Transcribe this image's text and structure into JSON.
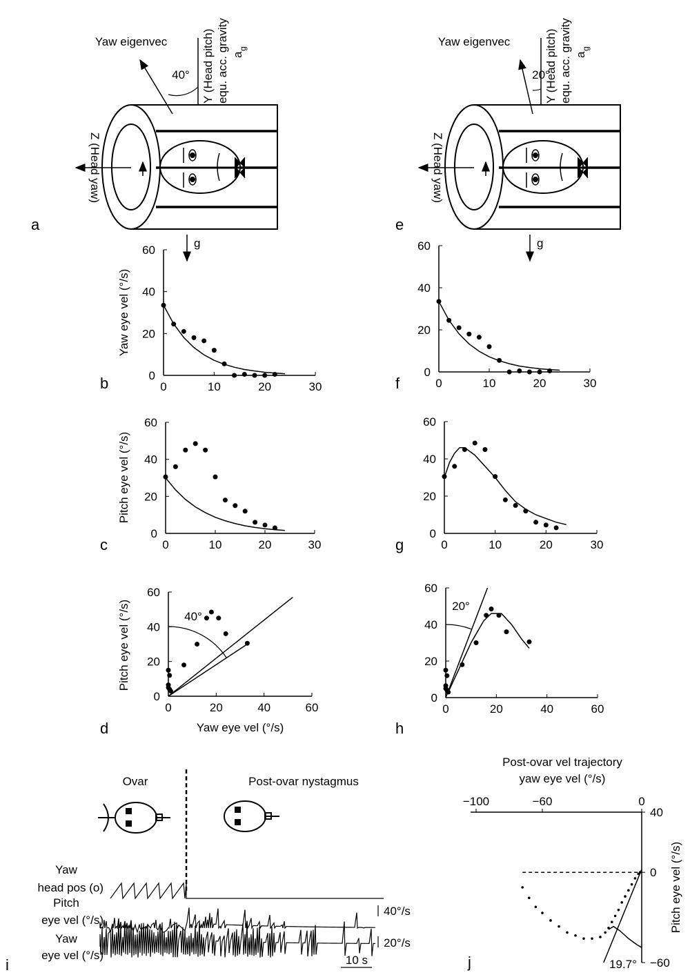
{
  "chart_data": [
    {
      "type": "scatter",
      "panel": "b",
      "ylabel": "Yaw eye vel (°/s)",
      "xlim": [
        0,
        30
      ],
      "ylim": [
        0,
        60
      ],
      "xticks": [
        0,
        10,
        20,
        30
      ],
      "yticks": [
        0,
        20,
        40,
        60
      ],
      "color": "#000000",
      "series": [
        {
          "mode": "markers",
          "x": [
            0,
            2,
            4,
            6,
            8,
            10,
            12,
            14,
            16,
            18,
            20,
            22
          ],
          "values": [
            33.5,
            24.5,
            21,
            18,
            16.5,
            12,
            5.5,
            0,
            0.5,
            0,
            0,
            0.5
          ]
        },
        {
          "mode": "line",
          "x": [
            0,
            2,
            4,
            6,
            8,
            10,
            12,
            14,
            16,
            18,
            20,
            22,
            24
          ],
          "values": [
            33.5,
            24.6,
            18.1,
            13.3,
            9.8,
            7.2,
            5.3,
            3.9,
            2.8,
            2.1,
            1.5,
            1.1,
            0.8
          ]
        }
      ]
    },
    {
      "type": "scatter",
      "panel": "c",
      "ylabel": "Pitch eye vel (°/s)",
      "xlim": [
        0,
        30
      ],
      "ylim": [
        0,
        60
      ],
      "xticks": [
        0,
        10,
        20,
        30
      ],
      "yticks": [
        0,
        20,
        40,
        60
      ],
      "color": "#000000",
      "series": [
        {
          "mode": "markers",
          "x": [
            0,
            2,
            4,
            6,
            8,
            10,
            12,
            14,
            16,
            18,
            20,
            22
          ],
          "values": [
            30.5,
            36,
            45,
            48.5,
            45,
            30.5,
            18,
            15,
            12,
            6,
            4.5,
            3
          ]
        },
        {
          "mode": "line",
          "x": [
            0,
            2,
            4,
            6,
            8,
            10,
            12,
            14,
            16,
            18,
            20,
            22,
            24
          ],
          "values": [
            30,
            23.5,
            18.3,
            14.3,
            11.2,
            8.7,
            6.8,
            5.3,
            4.1,
            3.2,
            2.5,
            2,
            1.6
          ]
        }
      ]
    },
    {
      "type": "scatter",
      "panel": "d",
      "ylabel": "Pitch eye vel (°/s)",
      "xlabel": "Yaw eye vel (°/s)",
      "angle_label": "40°",
      "xlim": [
        0,
        60
      ],
      "ylim": [
        0,
        60
      ],
      "xticks": [
        0,
        20,
        40,
        60
      ],
      "yticks": [
        0,
        20,
        40,
        60
      ],
      "color": "#000000",
      "series": [
        {
          "mode": "markers",
          "x": [
            0,
            0.5,
            0,
            0,
            0.5,
            1,
            6.5,
            12,
            16,
            18,
            21,
            24,
            33
          ],
          "values": [
            15,
            12,
            6.5,
            5,
            4,
            3,
            18,
            30,
            45,
            48.5,
            45,
            36,
            30.5
          ]
        },
        {
          "mode": "line",
          "x": [
            0,
            52
          ],
          "values": [
            0,
            57
          ]
        },
        {
          "mode": "line",
          "x": [
            0,
            33
          ],
          "values": [
            0,
            30
          ]
        }
      ]
    },
    {
      "type": "scatter",
      "panel": "f",
      "xlim": [
        0,
        30
      ],
      "ylim": [
        0,
        60
      ],
      "xticks": [
        0,
        10,
        20,
        30
      ],
      "yticks": [
        0,
        20,
        40,
        60
      ],
      "color": "#000000",
      "series": [
        {
          "mode": "markers",
          "x": [
            0,
            2,
            4,
            6,
            8,
            10,
            12,
            14,
            16,
            18,
            20,
            22
          ],
          "values": [
            33.5,
            24.5,
            21,
            18,
            16.5,
            12,
            5.5,
            0,
            0.5,
            0,
            0,
            0.5
          ]
        },
        {
          "mode": "line",
          "x": [
            0,
            2,
            4,
            6,
            8,
            10,
            12,
            14,
            16,
            18,
            20,
            22,
            24
          ],
          "values": [
            33.5,
            24.6,
            18.1,
            13.3,
            9.8,
            7.2,
            5.3,
            3.9,
            2.8,
            2.1,
            1.5,
            1.1,
            0.8
          ]
        }
      ]
    },
    {
      "type": "scatter",
      "panel": "g",
      "xlim": [
        0,
        30
      ],
      "ylim": [
        0,
        60
      ],
      "xticks": [
        0,
        10,
        20,
        30
      ],
      "yticks": [
        0,
        20,
        40,
        60
      ],
      "color": "#000000",
      "series": [
        {
          "mode": "markers",
          "x": [
            0,
            2,
            4,
            6,
            8,
            10,
            12,
            14,
            16,
            18,
            20,
            22
          ],
          "values": [
            30.5,
            36,
            45,
            48.5,
            45,
            30.5,
            18,
            15,
            12,
            6,
            4.5,
            3
          ]
        },
        {
          "mode": "line",
          "x": [
            0,
            1,
            2,
            3,
            4,
            6,
            8,
            10,
            12,
            14,
            16,
            18,
            20,
            22,
            24
          ],
          "values": [
            30,
            38,
            43,
            46,
            46,
            42,
            36,
            30,
            23,
            17,
            13,
            10,
            8,
            6,
            4.7
          ]
        }
      ]
    },
    {
      "type": "scatter",
      "panel": "h",
      "angle_label": "20°",
      "xlim": [
        0,
        60
      ],
      "ylim": [
        0,
        60
      ],
      "xticks": [
        0,
        20,
        40,
        60
      ],
      "yticks": [
        0,
        20,
        40,
        60
      ],
      "color": "#000000",
      "series": [
        {
          "mode": "markers",
          "x": [
            0,
            0.5,
            0,
            0,
            0.5,
            1,
            6.5,
            12,
            16,
            18,
            21,
            24,
            33
          ],
          "values": [
            15,
            12,
            6.5,
            5,
            4,
            3,
            18,
            30,
            45,
            48.5,
            45,
            36,
            30.5
          ]
        },
        {
          "mode": "line",
          "x": [
            0,
            16.5
          ],
          "values": [
            0,
            60
          ]
        },
        {
          "mode": "line",
          "x": [
            1,
            5,
            10,
            15,
            18,
            22,
            26,
            30,
            33
          ],
          "values": [
            3,
            15,
            30,
            42,
            46,
            46,
            40,
            32,
            27
          ]
        }
      ]
    },
    {
      "type": "scatter",
      "panel": "j",
      "title": "Post-ovar vel trajectory",
      "xlabel": "yaw eye vel (°/s)",
      "ylabel": "Pitch eye vel (°/s)",
      "angle_label": "19.7°",
      "xlim": [
        -100,
        0
      ],
      "ylim": [
        -60,
        40
      ],
      "xticks": [
        {
          "value": -100,
          "label": "−100"
        },
        {
          "value": -60,
          "label": "−60"
        },
        0
      ],
      "yticks": [
        40,
        0,
        {
          "value": -60,
          "label": "−60"
        }
      ],
      "color": "#000000",
      "series": [
        {
          "mode": "dots",
          "x": [
            -72,
            -68,
            -64,
            -60,
            -55,
            -50,
            -45,
            -40,
            -35,
            -30,
            -25,
            -22,
            -20,
            -18,
            -16,
            -14,
            -12,
            -10,
            -8,
            -6,
            -4,
            -2,
            -1
          ],
          "values": [
            -10,
            -17,
            -23,
            -27,
            -32,
            -36,
            -40,
            -42,
            -44,
            -44,
            -43,
            -40,
            -37,
            -33,
            -29,
            -25,
            -20,
            -16,
            -12,
            -8,
            -4,
            -1,
            0
          ]
        },
        {
          "mode": "dashed",
          "x": [
            -72,
            0
          ],
          "values": [
            0,
            0
          ]
        },
        {
          "mode": "line",
          "x": [
            -23,
            0
          ],
          "values": [
            -60,
            2
          ]
        },
        {
          "mode": "line",
          "x": [
            -20,
            -17,
            -13,
            -8,
            -3,
            0
          ],
          "values": [
            -38,
            -36,
            -39,
            -44,
            -48,
            -50
          ]
        }
      ]
    }
  ],
  "diagrams": [
    {
      "panel": "a",
      "eigenvector_label": "Yaw eigenvec",
      "angle": "40°",
      "y_axis_label": "Y (Head pitch)",
      "y_axis_sub": "equ. acc. gravity",
      "accel_symbol": "a",
      "accel_subscript": "g",
      "z_axis_label": "Z (Head yaw)",
      "gravity_label": "g"
    },
    {
      "panel": "e",
      "eigenvector_label": "Yaw eigenvec",
      "angle": "20°",
      "y_axis_label": "Y (Head pitch)",
      "y_axis_sub": "equ. acc. gravity",
      "accel_symbol": "a",
      "accel_subscript": "g",
      "z_axis_label": "Z (Head yaw)",
      "gravity_label": "g"
    }
  ],
  "recording": {
    "panel": "i",
    "phase_left": "Ovar",
    "phase_right": "Post-ovar nystagmus",
    "rows": [
      [
        "Yaw",
        "head pos (o)"
      ],
      [
        "Pitch",
        "eye vel (°/s)"
      ],
      [
        "Yaw",
        "eye vel (°/s)"
      ]
    ],
    "scale_labels": [
      "40°/s",
      "20°/s"
    ],
    "time_scale": "10 s"
  }
}
